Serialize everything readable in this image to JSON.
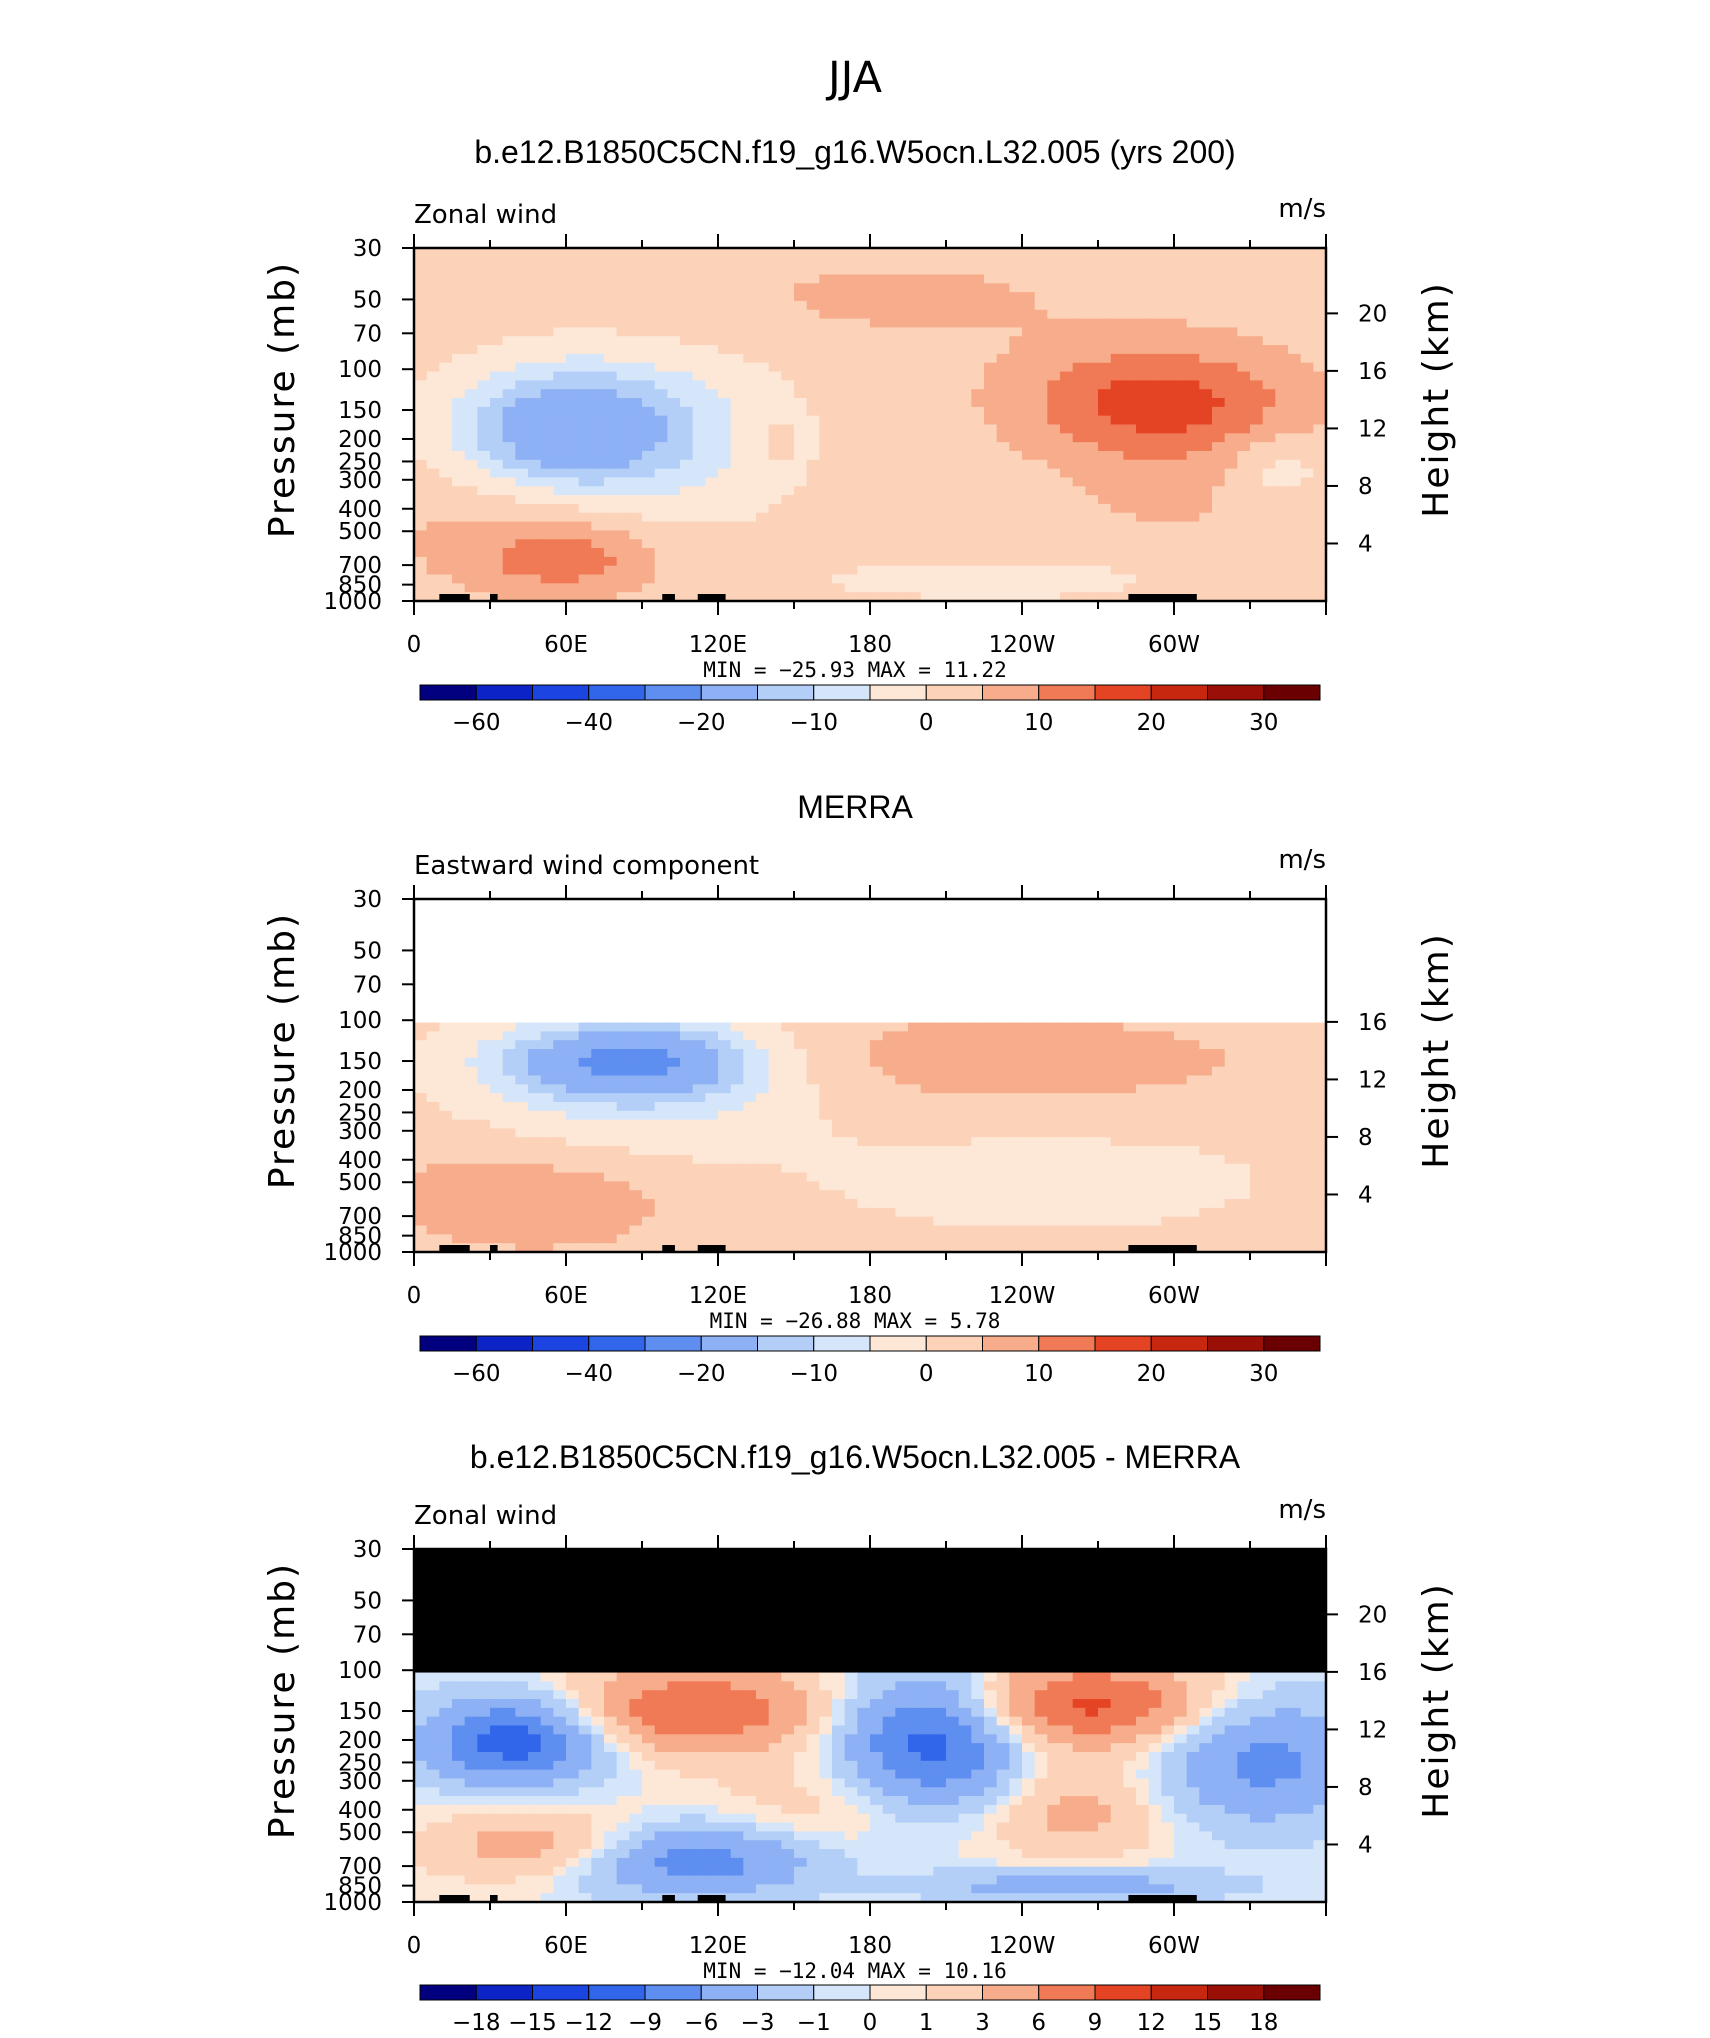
{
  "figure": {
    "title": "JJA",
    "colors": {
      "wind_scale": [
        "#02007f",
        "#0c23c5",
        "#1c44e0",
        "#3266ea",
        "#5d8ef0",
        "#8db1f4",
        "#b3cff8",
        "#d5e6fb",
        "#fde8d8",
        "#fcd2b8",
        "#f7ad8c",
        "#f17a56",
        "#e54424",
        "#c7260f",
        "#9a0f07",
        "#6b0002"
      ],
      "diff_scale": [
        "#02007f",
        "#0c23c5",
        "#1c44e0",
        "#3266ea",
        "#5d8ef0",
        "#8db1f4",
        "#b3cff8",
        "#d5e6fb",
        "#fde8d8",
        "#fcd2b8",
        "#f7ad8c",
        "#f17a56",
        "#e54424",
        "#c7260f",
        "#9a0f07",
        "#6b0002"
      ],
      "land": "#000000",
      "missing": "#ffffff"
    }
  },
  "chart_data": [
    {
      "type": "heatmap",
      "title": "b.e12.B1850C5CN.f19_g16.W5ocn.L32.005 (yrs 200)",
      "left_label": "Zonal wind",
      "units": "m/s",
      "ylabel": "Pressure (mb)",
      "ylabel_right": "Height (km)",
      "x_ticks": [
        "0",
        "60E",
        "120E",
        "180",
        "120W",
        "60W"
      ],
      "y_ticks": [
        "30",
        "50",
        "70",
        "100",
        "150",
        "200",
        "250",
        "300",
        "400",
        "500",
        "700",
        "850",
        "1000"
      ],
      "y_ticks_right": [
        "20",
        "16",
        "12",
        "8",
        "4"
      ],
      "stats": {
        "min_label": "MIN =",
        "min": "−25.93",
        "max_label": "MAX =",
        "max": "11.22"
      },
      "colorbar": {
        "labels": [
          "−60",
          "−40",
          "−20",
          "−10",
          "0",
          "10",
          "20",
          "30"
        ]
      },
      "field": "model",
      "min": -25.93,
      "max": 11.22,
      "missing_above_mb": null
    },
    {
      "type": "heatmap",
      "title": "MERRA",
      "left_label": "Eastward wind component",
      "units": "m/s",
      "ylabel": "Pressure (mb)",
      "ylabel_right": "Height (km)",
      "x_ticks": [
        "0",
        "60E",
        "120E",
        "180",
        "120W",
        "60W"
      ],
      "y_ticks": [
        "30",
        "50",
        "70",
        "100",
        "150",
        "200",
        "250",
        "300",
        "400",
        "500",
        "700",
        "850",
        "1000"
      ],
      "y_ticks_right": [
        "16",
        "12",
        "8",
        "4"
      ],
      "stats": {
        "min_label": "MIN =",
        "min": "−26.88",
        "max_label": "MAX =",
        "max": "5.78"
      },
      "colorbar": {
        "labels": [
          "−60",
          "−40",
          "−20",
          "−10",
          "0",
          "10",
          "20",
          "30"
        ]
      },
      "field": "merra",
      "min": -26.88,
      "max": 5.78,
      "missing_above_mb": 100
    },
    {
      "type": "heatmap",
      "title": "b.e12.B1850C5CN.f19_g16.W5ocn.L32.005 - MERRA",
      "left_label": "Zonal wind",
      "units": "m/s",
      "ylabel": "Pressure (mb)",
      "ylabel_right": "Height (km)",
      "x_ticks": [
        "0",
        "60E",
        "120E",
        "180",
        "120W",
        "60W"
      ],
      "y_ticks": [
        "30",
        "50",
        "70",
        "100",
        "150",
        "200",
        "250",
        "300",
        "400",
        "500",
        "700",
        "850",
        "1000"
      ],
      "y_ticks_right": [
        "20",
        "16",
        "12",
        "8",
        "4"
      ],
      "stats": {
        "min_label": "MIN =",
        "min": "−12.04",
        "max_label": "MAX =",
        "max": "10.16"
      },
      "colorbar": {
        "labels": [
          "−18",
          "−15",
          "−12",
          "−9",
          "−6",
          "−3",
          "−1",
          "0",
          "1",
          "3",
          "6",
          "9",
          "12",
          "15",
          "18"
        ]
      },
      "field": "diff",
      "min": -12.04,
      "max": 10.16,
      "missing_above_mb": 100
    }
  ]
}
